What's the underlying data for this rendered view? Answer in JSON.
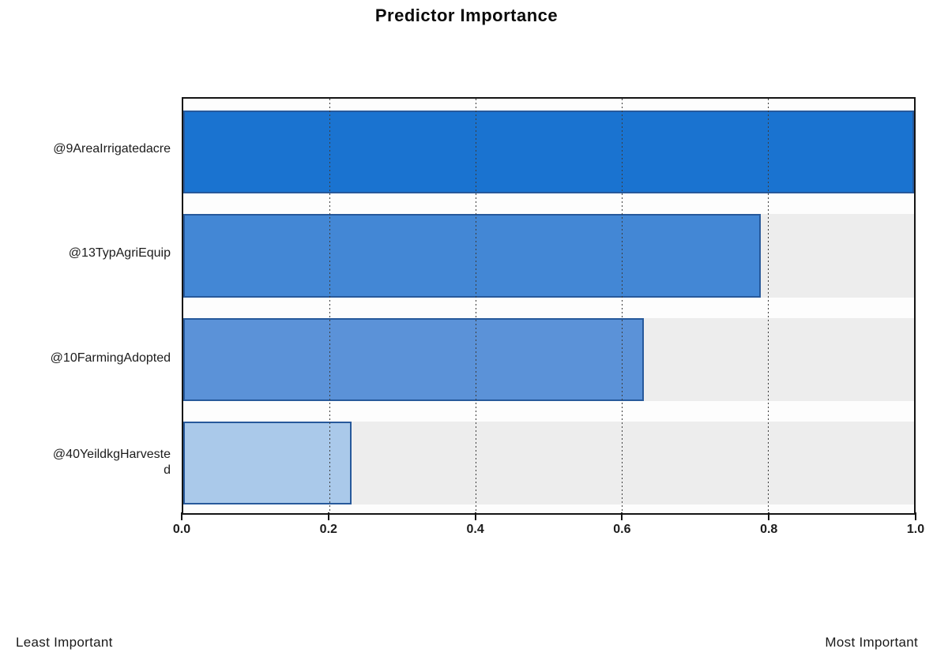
{
  "chart_data": {
    "type": "bar",
    "orientation": "horizontal",
    "title": "Predictor Importance",
    "categories": [
      "@9AreaIrrigatedacre",
      "@13TypAgriEquip",
      "@10FarmingAdopted",
      "@40YeildkgHarvested"
    ],
    "category_labels_display": [
      "@9AreaIrrigatedacre",
      "@13TypAgriEquip",
      "@10FarmingAdopted",
      "@40YeildkgHarveste\nd"
    ],
    "values": [
      1.0,
      0.79,
      0.63,
      0.23
    ],
    "xlabel": "",
    "ylabel": "",
    "xlim": [
      0,
      1
    ],
    "x_ticks": [
      "0.0",
      "0.2",
      "0.4",
      "0.6",
      "0.8",
      "1.0"
    ],
    "x_tick_values": [
      0,
      0.2,
      0.4,
      0.6,
      0.8,
      1.0
    ],
    "gridlines": [
      0.2,
      0.4,
      0.6,
      0.8
    ],
    "grid_style": "dotted",
    "legend": "none",
    "colors": {
      "bars": [
        "#1a73d0",
        "#4387d5",
        "#5b92d8",
        "#aac9ea"
      ],
      "bar_border": "#27599b",
      "plot_background": "#ededed",
      "row_separator": "#fdfdfd",
      "axis": "#151515"
    },
    "footer": {
      "left": "Least Important",
      "right": "Most Important"
    }
  }
}
